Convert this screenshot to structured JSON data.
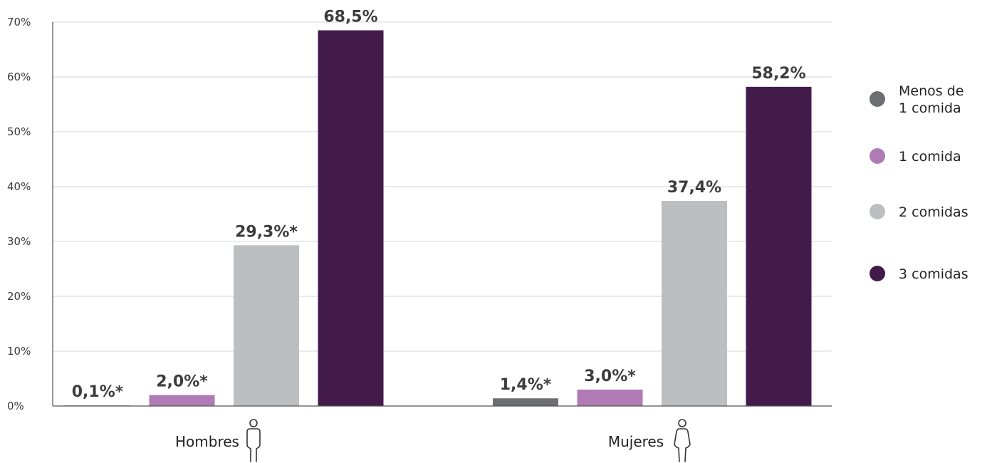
{
  "chart_data": {
    "type": "bar",
    "categories": [
      "Hombres",
      "Mujeres"
    ],
    "series": [
      {
        "name": "Menos de 1 comida",
        "legend_lines": [
          "Menos de",
          "1 comida"
        ],
        "values": [
          0.1,
          1.4
        ],
        "labels": [
          "0,1%*",
          "1,4%*"
        ],
        "color": "#6d6e71"
      },
      {
        "name": "1 comida",
        "legend_lines": [
          "1 comida"
        ],
        "values": [
          2.0,
          3.0
        ],
        "labels": [
          "2,0%*",
          "3,0%*"
        ],
        "color": "#b07ab5"
      },
      {
        "name": "2 comidas",
        "legend_lines": [
          "2 comidas"
        ],
        "values": [
          29.3,
          37.4
        ],
        "labels": [
          "29,3%*",
          "37,4%"
        ],
        "color": "#bcbec0"
      },
      {
        "name": "3 comidas",
        "legend_lines": [
          "3 comidas"
        ],
        "values": [
          68.5,
          58.2
        ],
        "labels": [
          "68,5%",
          "58,2%"
        ],
        "color": "#421b4b"
      }
    ],
    "yticks": [
      0,
      10,
      20,
      30,
      40,
      50,
      60,
      70
    ],
    "ytick_labels": [
      "0%",
      "10%",
      "20%",
      "30%",
      "40%",
      "50%",
      "60%",
      "70%"
    ],
    "ylim": [
      0,
      70
    ],
    "grid": true,
    "legend_position": "right",
    "category_icons": [
      "man-icon",
      "woman-icon"
    ]
  }
}
